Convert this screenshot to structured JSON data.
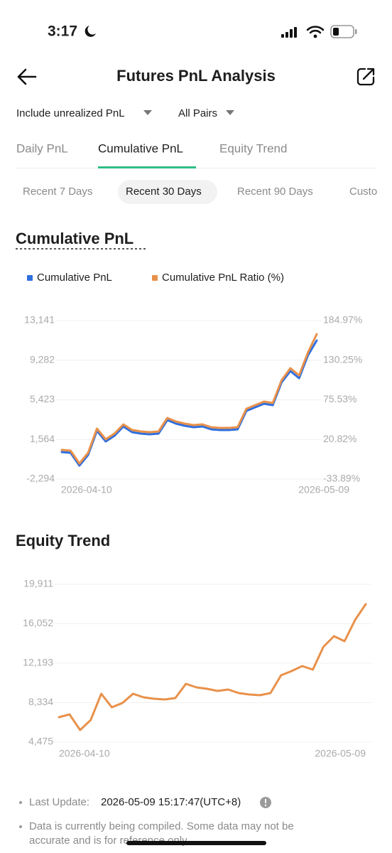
{
  "status_bar": {
    "time": "3:17"
  },
  "header": {
    "title": "Futures PnL Analysis"
  },
  "filters": [
    "Include unrealized PnL",
    "All Pairs"
  ],
  "tabs": [
    "Daily PnL",
    "Cumulative PnL",
    "Equity Trend"
  ],
  "periods": [
    "Recent 7 Days",
    "Recent 30 Days",
    "Recent 90 Days",
    "Custo"
  ],
  "footer": {
    "update_label": "Last Update:",
    "update_value": "2026-05-09 15:17:47(UTC+8)",
    "note": [
      "Data is currently being compiled. Some data may not be",
      "accurate and is for reference only."
    ]
  },
  "chart_data": [
    {
      "type": "line",
      "title": "Cumulative PnL",
      "grid": true,
      "categories": [
        "2026-04-10",
        null,
        null,
        null,
        null,
        null,
        null,
        null,
        null,
        null,
        null,
        null,
        null,
        null,
        null,
        null,
        null,
        null,
        null,
        null,
        null,
        null,
        null,
        null,
        null,
        null,
        null,
        null,
        null,
        "2026-05-09"
      ],
      "ylim": [
        -2294,
        13141
      ],
      "yticks": [
        {
          "value": 13141,
          "label": "13,141"
        },
        {
          "value": 9282,
          "label": "9,282"
        },
        {
          "value": 5423,
          "label": "5,423"
        },
        {
          "value": 1564,
          "label": "1,564"
        },
        {
          "value": -2294,
          "label": "-2,294"
        }
      ],
      "y2lim": [
        -33.89,
        184.97
      ],
      "y2ticks": [
        {
          "value": 184.97,
          "label": "184.97%"
        },
        {
          "value": 130.25,
          "label": "130.25%"
        },
        {
          "value": 75.53,
          "label": "75.53%"
        },
        {
          "value": 20.82,
          "label": "20.82%"
        },
        {
          "value": -33.89,
          "label": "-33.89%"
        }
      ],
      "series": [
        {
          "name": "Cumulative PnL",
          "color": "#2f6fde",
          "values": [
            335,
            266,
            -980,
            59,
            2412,
            1374,
            1927,
            2827,
            2274,
            2135,
            2066,
            2135,
            3450,
            3104,
            2896,
            2758,
            2827,
            2550,
            2481,
            2481,
            2550,
            4350,
            4696,
            5042,
            4904,
            7119,
            8226,
            7534,
            9749,
            11203
          ]
        },
        {
          "name": "Cumulative PnL Ratio (%)",
          "color": "#e8914a",
          "axis": "y2",
          "values": [
            6.4,
            5.4,
            -12.3,
            2.5,
            35.8,
            21.1,
            29.0,
            41.7,
            33.9,
            31.9,
            30.9,
            31.9,
            50.5,
            45.6,
            42.7,
            40.7,
            41.7,
            37.8,
            36.8,
            36.8,
            37.8,
            63.3,
            68.2,
            73.1,
            71.2,
            102.5,
            119.2,
            109.4,
            140.8,
            166.3
          ]
        }
      ]
    },
    {
      "type": "line",
      "title": "Equity Trend",
      "grid": true,
      "categories": [
        "2026-04-10",
        null,
        null,
        null,
        null,
        null,
        null,
        null,
        null,
        null,
        null,
        null,
        null,
        null,
        null,
        null,
        null,
        null,
        null,
        null,
        null,
        null,
        null,
        null,
        null,
        null,
        null,
        null,
        null,
        "2026-05-09"
      ],
      "ylim": [
        4475,
        19911
      ],
      "yticks": [
        {
          "value": 19911,
          "label": "19,911"
        },
        {
          "value": 16052,
          "label": "16,052"
        },
        {
          "value": 12193,
          "label": "12,193"
        },
        {
          "value": 8334,
          "label": "8,334"
        },
        {
          "value": 4475,
          "label": "4,475"
        }
      ],
      "series": [
        {
          "color": "#e8914a",
          "values": [
            6909,
            7187,
            5657,
            6631,
            9203,
            7882,
            8299,
            9203,
            8856,
            8717,
            8647,
            8786,
            10177,
            9829,
            9690,
            9481,
            9621,
            9273,
            9134,
            9064,
            9273,
            11011,
            11428,
            11915,
            11567,
            13792,
            14835,
            14349,
            16434,
            17964
          ]
        }
      ]
    }
  ]
}
